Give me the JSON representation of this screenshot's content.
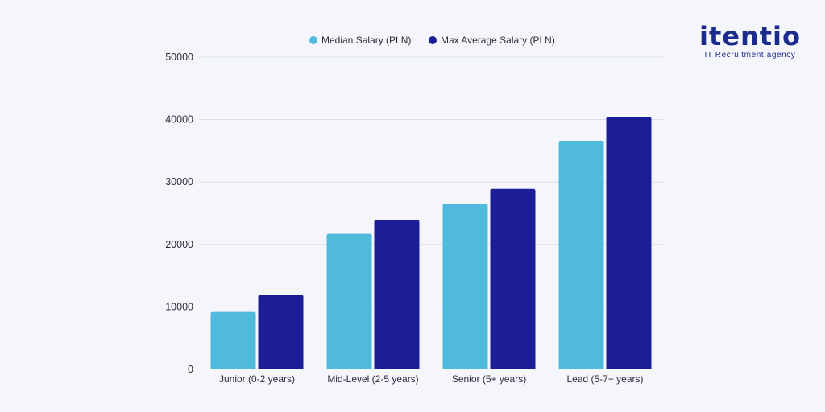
{
  "brand": {
    "logo_text": "itentio",
    "tagline": "IT Recruitment agency",
    "color": "#1b2a8f"
  },
  "colors": {
    "median": "#4fbadc",
    "max": "#1a1d95",
    "grid": "#dcdde6",
    "axis_text": "#2b2b3a"
  },
  "chart_data": {
    "type": "bar",
    "title": "",
    "xlabel": "",
    "ylabel": "",
    "categories": [
      "Junior (0-2 years)",
      "Mid-Level (2-5 years)",
      "Senior (5+ years)",
      "Lead (5-7+ years)"
    ],
    "series": [
      {
        "name": "Median Salary (PLN)",
        "values": [
          9200,
          21700,
          26500,
          36600
        ]
      },
      {
        "name": "Max Average Salary (PLN)",
        "values": [
          11900,
          23900,
          28900,
          40400
        ]
      }
    ],
    "ylim": [
      0,
      50000
    ],
    "yticks": [
      "0",
      "10000",
      "20000",
      "30000",
      "40000",
      "50000"
    ],
    "grid": true,
    "legend_position": "top-center"
  }
}
